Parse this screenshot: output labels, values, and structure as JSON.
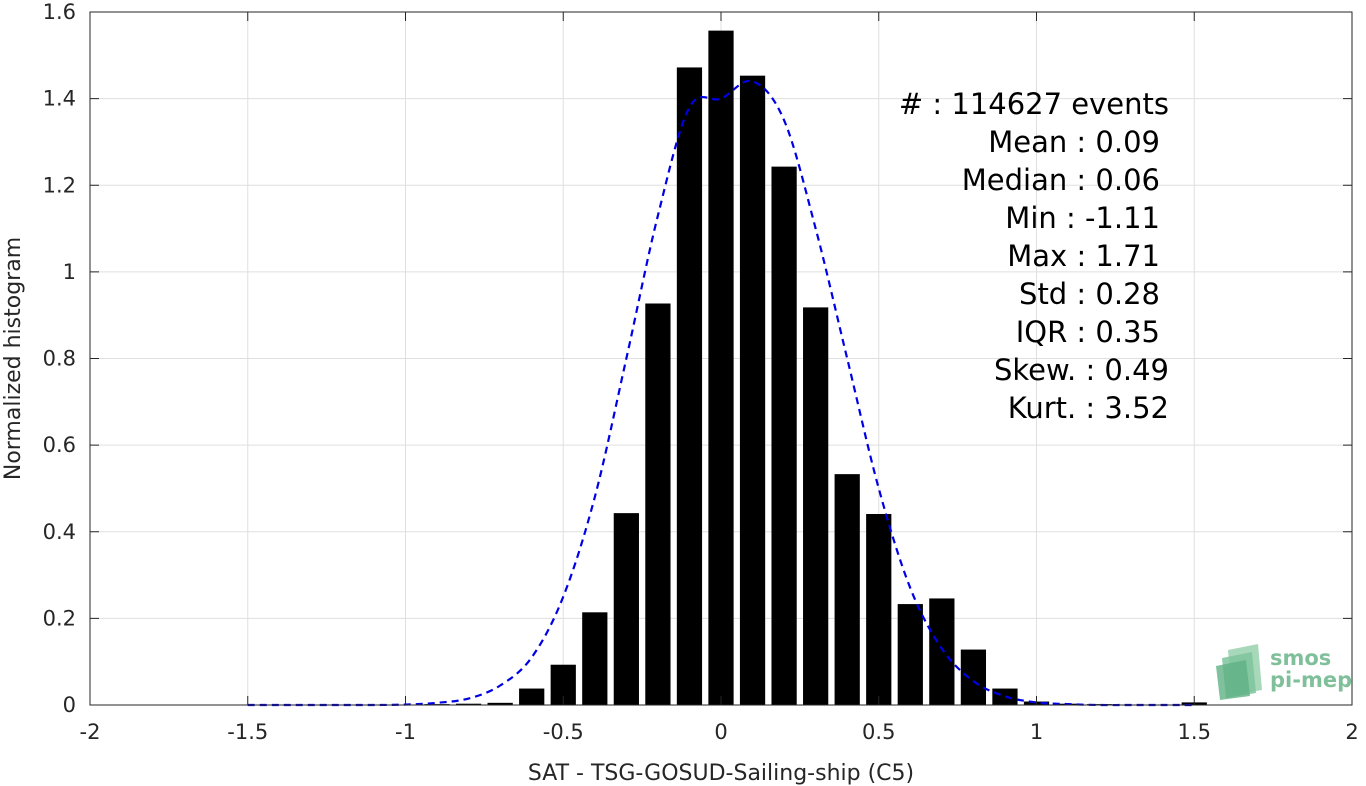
{
  "chart_data": {
    "type": "bar",
    "xlabel": "SAT - TSG-GOSUD-Sailing-ship (C5)",
    "ylabel": "Normalized histogram",
    "xlim": [
      -2,
      2
    ],
    "ylim": [
      0,
      1.6
    ],
    "xticks": [
      -2,
      -1.5,
      -1,
      -0.5,
      0,
      0.5,
      1,
      1.5,
      2
    ],
    "xtick_labels": [
      "-2",
      "-1.5",
      "-1",
      "-0.5",
      "0",
      "0.5",
      "1",
      "1.5",
      "2"
    ],
    "yticks": [
      0,
      0.2,
      0.4,
      0.6,
      0.8,
      1,
      1.2,
      1.4,
      1.6
    ],
    "ytick_labels": [
      "0",
      "0.2",
      "0.4",
      "0.6",
      "0.8",
      "1",
      "1.2",
      "1.4",
      "1.6"
    ],
    "grid": true,
    "bar_color": "#000000",
    "bin_width": 0.1,
    "bars": {
      "x": [
        -1.1,
        -1.0,
        -0.9,
        -0.8,
        -0.7,
        -0.6,
        -0.5,
        -0.4,
        -0.3,
        -0.2,
        -0.1,
        0.0,
        0.1,
        0.2,
        0.3,
        0.4,
        0.5,
        0.6,
        0.7,
        0.8,
        0.9,
        1.0,
        1.1,
        1.2,
        1.3,
        1.4,
        1.5
      ],
      "values": [
        0.001,
        0.001,
        0.002,
        0.003,
        0.005,
        0.038,
        0.093,
        0.214,
        0.443,
        0.927,
        1.472,
        1.557,
        1.453,
        1.243,
        0.918,
        0.533,
        0.441,
        0.233,
        0.246,
        0.128,
        0.038,
        0.008,
        0.003,
        0.002,
        0.001,
        0.001,
        0.006
      ]
    },
    "fit_curve": {
      "color": "#0000e6",
      "style": "dashed",
      "x": [
        -1.5,
        -1.4,
        -1.3,
        -1.2,
        -1.1,
        -1.0,
        -0.9,
        -0.8,
        -0.7,
        -0.6,
        -0.5,
        -0.4,
        -0.3,
        -0.2,
        -0.1,
        0.0,
        0.1,
        0.2,
        0.3,
        0.4,
        0.5,
        0.6,
        0.7,
        0.8,
        0.9,
        1.0,
        1.1,
        1.2,
        1.3,
        1.4,
        1.5
      ],
      "y": [
        0.0,
        0.0,
        0.0,
        0.0,
        0.0,
        0.001,
        0.005,
        0.015,
        0.045,
        0.11,
        0.25,
        0.48,
        0.8,
        1.13,
        1.38,
        1.4,
        1.44,
        1.35,
        1.1,
        0.8,
        0.5,
        0.27,
        0.13,
        0.055,
        0.02,
        0.006,
        0.002,
        0.0,
        0.0,
        0.0,
        0.0
      ]
    },
    "annotations": [
      {
        "label": "#  : 114627 events",
        "indent": 0
      },
      {
        "label": "Mean : 0.09",
        "indent": 1
      },
      {
        "label": "Median : 0.06",
        "indent": 1
      },
      {
        "label": "Min : -1.11",
        "indent": 1
      },
      {
        "label": "Max : 1.71",
        "indent": 1
      },
      {
        "label": "Std : 0.28",
        "indent": 1
      },
      {
        "label": "IQR : 0.35",
        "indent": 1
      },
      {
        "label": "Skew. : 0.49",
        "indent": 0
      },
      {
        "label": "Kurt. : 3.52",
        "indent": 0
      }
    ]
  },
  "logo": {
    "line1": "smos",
    "line2": "pi-mep",
    "color": "#7fbf9a"
  }
}
